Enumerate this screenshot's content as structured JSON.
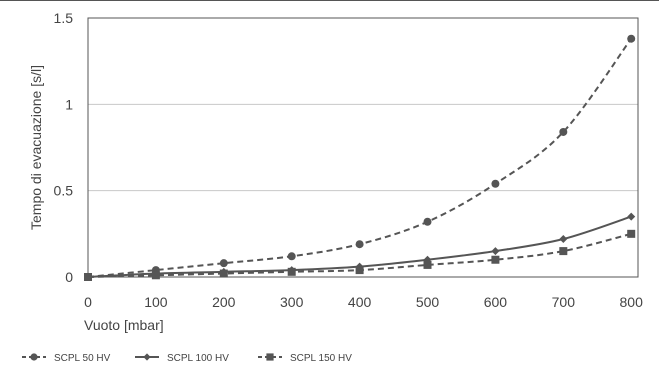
{
  "chart_data": {
    "type": "line",
    "title": "",
    "xlabel": "Vuoto [mbar]",
    "ylabel": "Tempo di evacuazione [s/l]",
    "xlim": [
      0,
      810
    ],
    "ylim": [
      0,
      1.5
    ],
    "xticks": [
      0,
      100,
      200,
      300,
      400,
      500,
      600,
      700,
      800
    ],
    "yticks": [
      0,
      0.5,
      1,
      1.5
    ],
    "ytick_labels": [
      "0",
      "0.5",
      "1",
      "1.5"
    ],
    "grid": "horizontal",
    "legend_position": "bottom",
    "series": [
      {
        "name": "SCPL 50 HV",
        "line_style": "dashed",
        "marker": "circle",
        "color": "#555555",
        "x": [
          0,
          100,
          200,
          300,
          400,
          500,
          600,
          700,
          800
        ],
        "values": [
          0,
          0.04,
          0.08,
          0.12,
          0.19,
          0.32,
          0.54,
          0.84,
          1.38
        ]
      },
      {
        "name": "SCPL 100 HV",
        "line_style": "solid",
        "marker": "diamond",
        "color": "#555555",
        "x": [
          0,
          100,
          200,
          300,
          400,
          500,
          600,
          700,
          800
        ],
        "values": [
          0,
          0.02,
          0.03,
          0.04,
          0.06,
          0.1,
          0.15,
          0.22,
          0.35
        ]
      },
      {
        "name": "SCPL 150 HV",
        "line_style": "dashed",
        "marker": "square",
        "color": "#555555",
        "x": [
          0,
          100,
          200,
          300,
          400,
          500,
          600,
          700,
          800
        ],
        "values": [
          0,
          0.01,
          0.02,
          0.03,
          0.04,
          0.07,
          0.1,
          0.15,
          0.25
        ]
      }
    ]
  }
}
